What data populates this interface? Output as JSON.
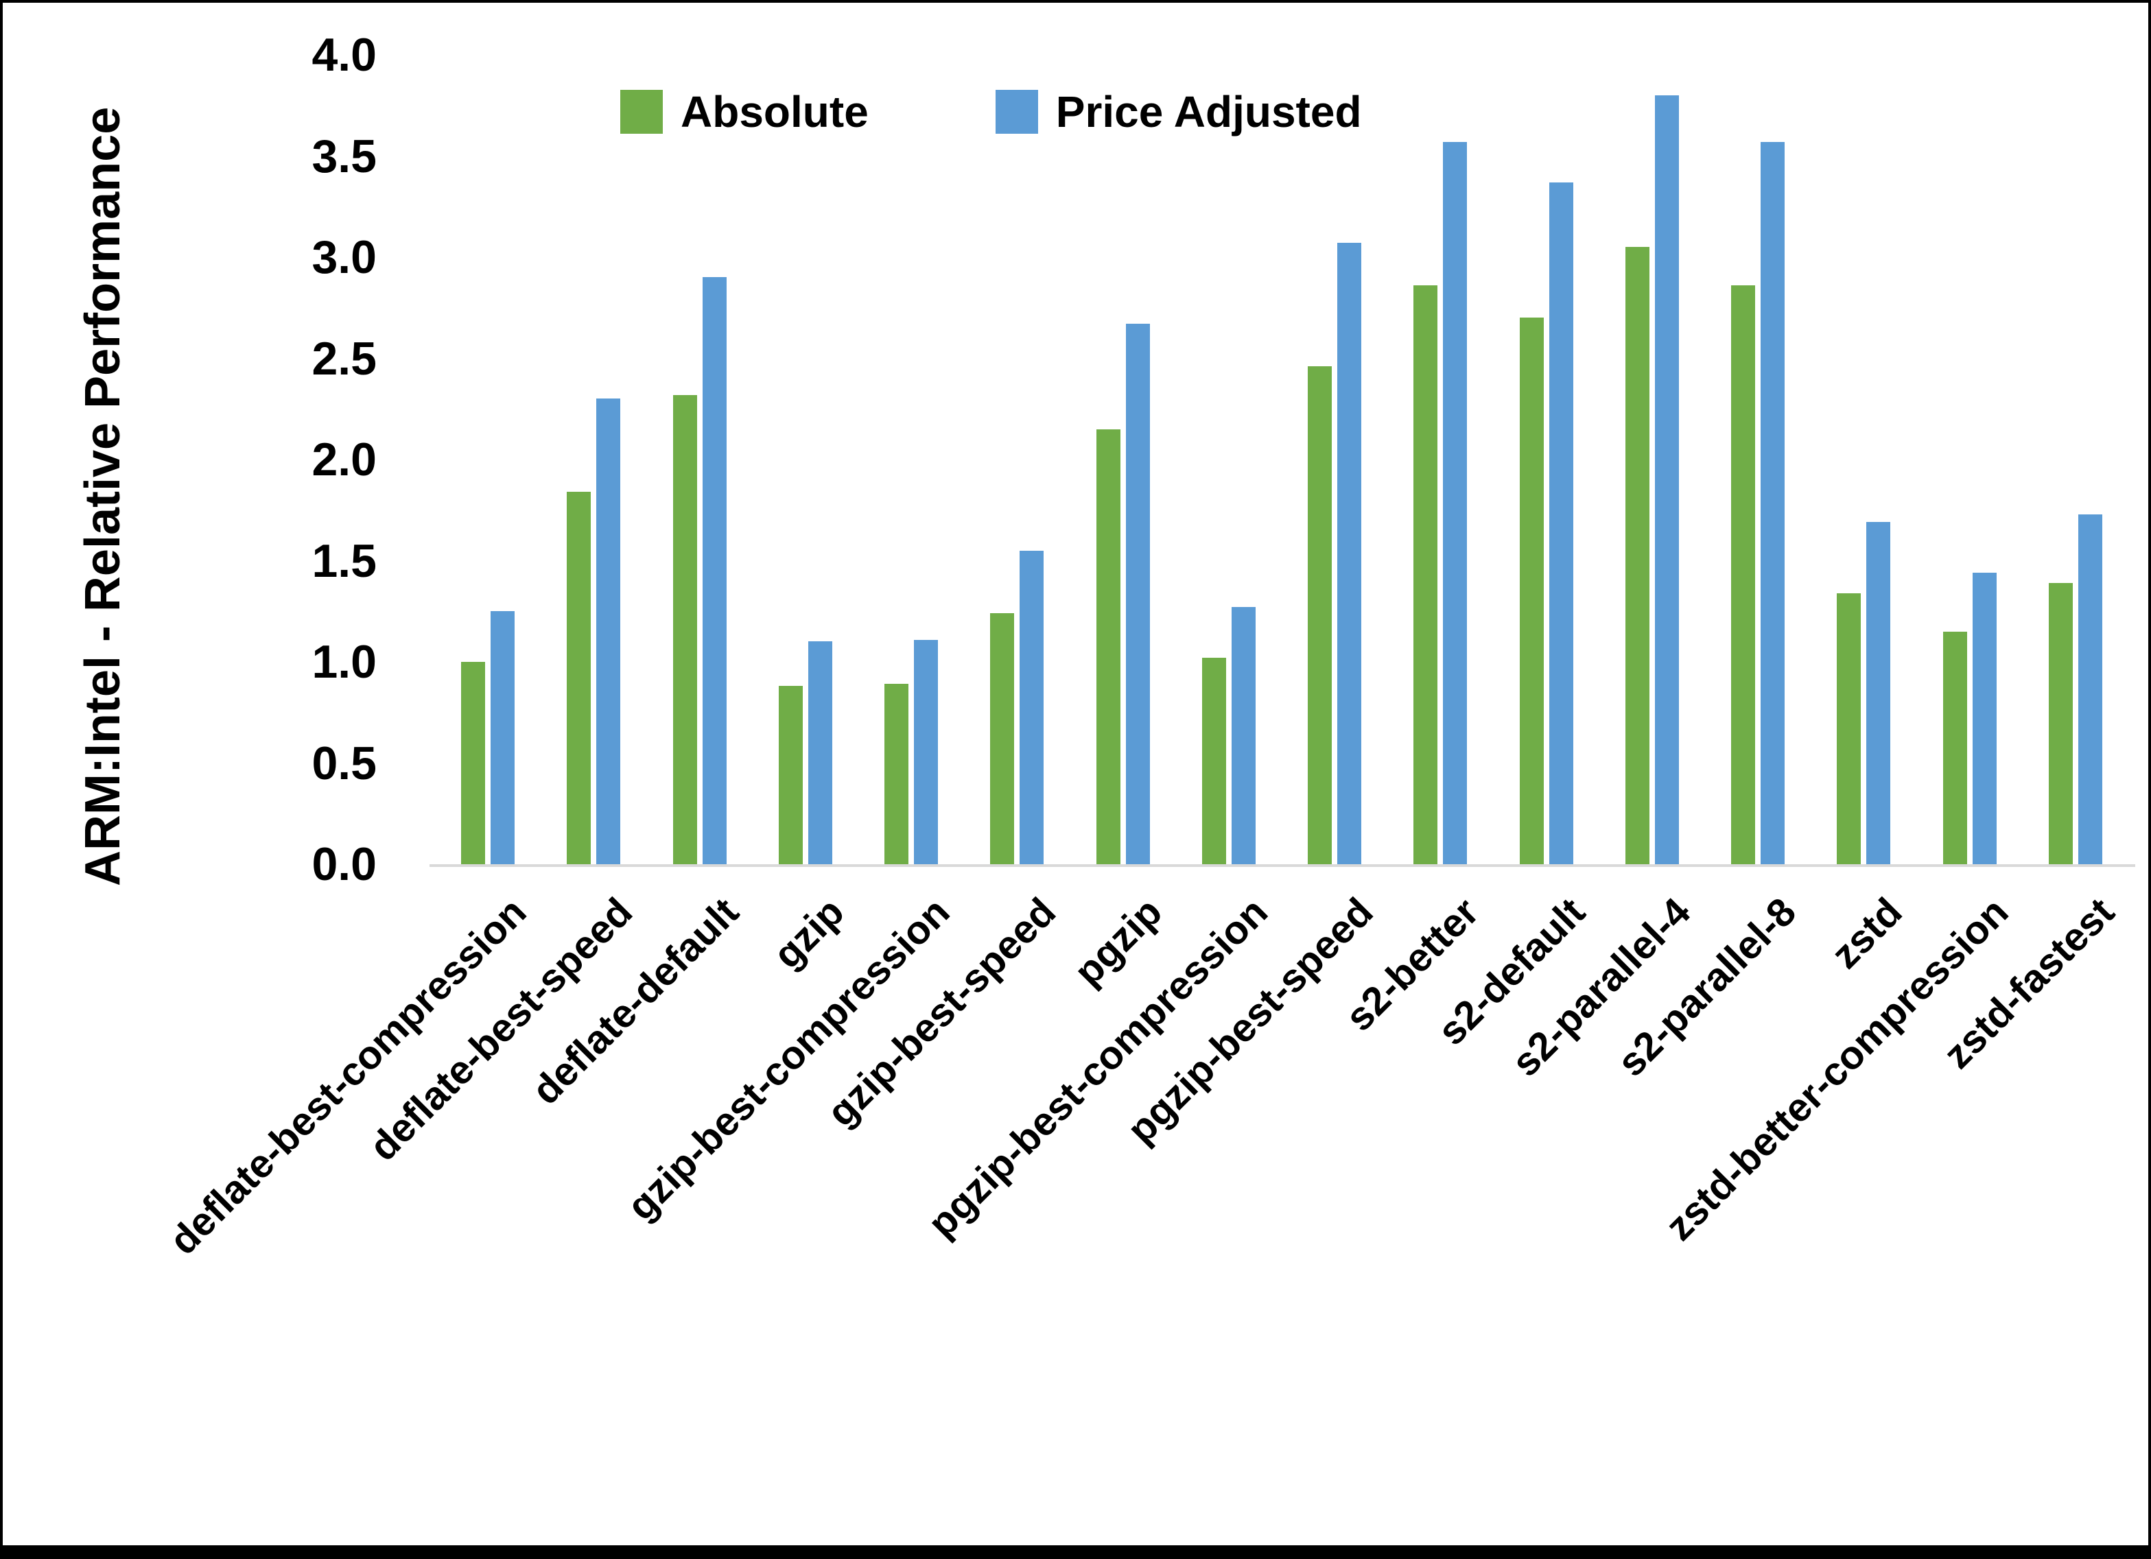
{
  "chart_data": {
    "type": "bar",
    "title": "",
    "ylabel": "ARM:Intel - Relative Performance",
    "xlabel": "",
    "ylim": [
      0,
      4
    ],
    "ytick_step": 0.5,
    "yticks": [
      "0.0",
      "0.5",
      "1.0",
      "1.5",
      "2.0",
      "2.5",
      "3.0",
      "3.5",
      "4.0"
    ],
    "grid": false,
    "legend_position": "top-center",
    "axis_line_color": "#D9D9D9",
    "text_color": "#000000",
    "categories": [
      "deflate-best-compression",
      "deflate-best-speed",
      "deflate-default",
      "gzip",
      "gzip-best-compression",
      "gzip-best-speed",
      "pgzip",
      "pgzip-best-compression",
      "pgzip-best-speed",
      "s2-better",
      "s2-default",
      "s2-parallel-4",
      "s2-parallel-8",
      "zstd",
      "zstd-better-compression",
      "zstd-fastest"
    ],
    "series": [
      {
        "name": "Absolute",
        "color": "#70AD47",
        "values": [
          1.0,
          1.84,
          2.32,
          0.88,
          0.89,
          1.24,
          2.15,
          1.02,
          2.46,
          2.86,
          2.7,
          3.05,
          2.86,
          1.34,
          1.15,
          1.39
        ]
      },
      {
        "name": "Price Adjusted",
        "color": "#5B9BD5",
        "values": [
          1.25,
          2.3,
          2.9,
          1.1,
          1.11,
          1.55,
          2.67,
          1.27,
          3.07,
          3.57,
          3.37,
          3.8,
          3.57,
          1.69,
          1.44,
          1.73
        ]
      }
    ]
  },
  "legend": {
    "items": [
      {
        "label": "Absolute",
        "color": "#70AD47"
      },
      {
        "label": "Price Adjusted",
        "color": "#5B9BD5"
      }
    ]
  }
}
